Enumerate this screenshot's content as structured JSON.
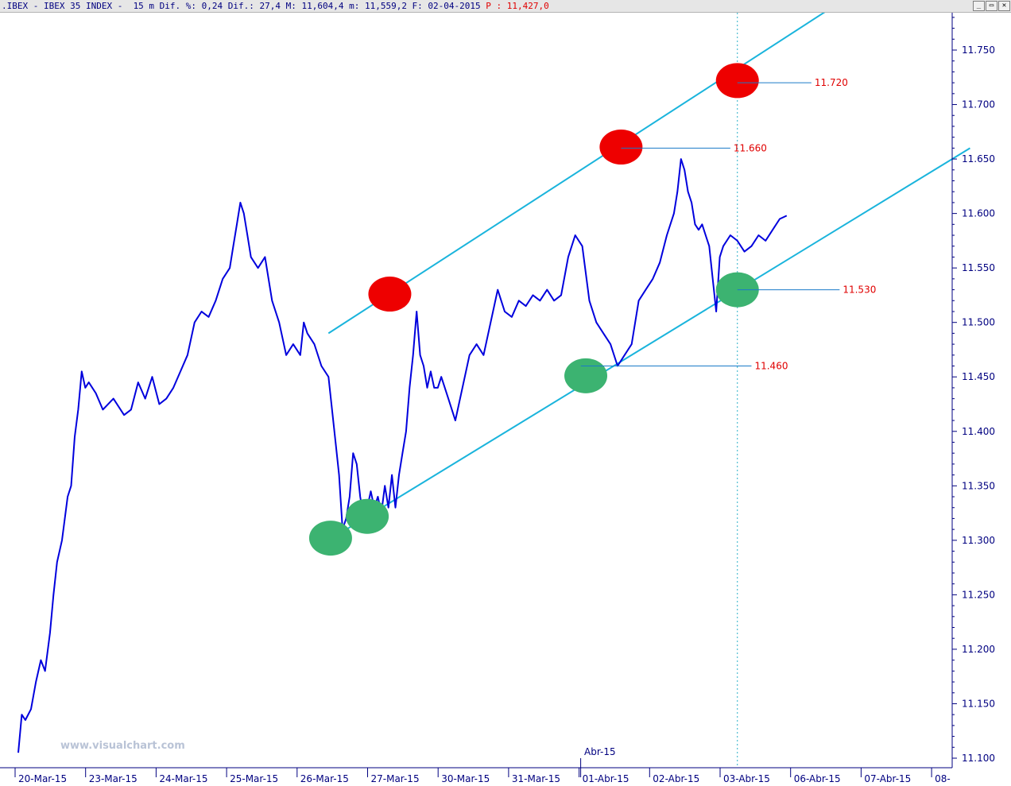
{
  "window": {
    "title": ".IBEX - IBEX 35 INDEX -  15 m Dif. %: 0,24 Dif.: 27,4 M: 11,604,4 m: 11,559,2 F: 02-04-2015",
    "title_extra": "P : 11,427,0",
    "controls": [
      "_",
      "▭",
      "✕"
    ]
  },
  "watermark": "www.visualchart.com",
  "month_marker": "Abr-15",
  "colors": {
    "price": "#0000dd",
    "channel": "#1ab4dc",
    "level_line": "#1a7ac8",
    "level_text": "#e00000",
    "red_marker": "#ee0000",
    "green_marker": "#3cb371",
    "axis": "#000080",
    "vline": "#2ab0c8"
  },
  "chart_data": {
    "type": "line",
    "title": "IBEX 35 INDEX 15 m",
    "ylim": [
      11090,
      11800
    ],
    "yticks": [
      11100,
      11150,
      11200,
      11250,
      11300,
      11350,
      11400,
      11450,
      11500,
      11550,
      11600,
      11650,
      11700,
      11750
    ],
    "ytick_labels": [
      "11.100",
      "11.150",
      "11.200",
      "11.250",
      "11.300",
      "11.350",
      "11.400",
      "11.450",
      "11.500",
      "11.550",
      "11.600",
      "11.650",
      "11.700",
      "11.750"
    ],
    "xtick_labels": [
      "20-Mar-15",
      "23-Mar-15",
      "24-Mar-15",
      "25-Mar-15",
      "26-Mar-15",
      "27-Mar-15",
      "30-Mar-15",
      "31-Mar-15",
      "01-Abr-15",
      "02-Abr-15",
      "03-Abr-15",
      "06-Abr-15",
      "07-Abr-15",
      "08-"
    ],
    "x_domain": [
      0,
      13
    ],
    "series": [
      {
        "values": [
          [
            0.0,
            11105
          ],
          [
            0.05,
            11140
          ],
          [
            0.1,
            11135
          ],
          [
            0.18,
            11145
          ],
          [
            0.25,
            11170
          ],
          [
            0.32,
            11190
          ],
          [
            0.38,
            11180
          ],
          [
            0.45,
            11215
          ],
          [
            0.5,
            11250
          ],
          [
            0.55,
            11280
          ],
          [
            0.62,
            11300
          ],
          [
            0.7,
            11340
          ],
          [
            0.75,
            11350
          ],
          [
            0.8,
            11395
          ],
          [
            0.85,
            11420
          ],
          [
            0.9,
            11455
          ],
          [
            0.95,
            11440
          ],
          [
            1.0,
            11445
          ],
          [
            1.1,
            11435
          ],
          [
            1.2,
            11420
          ],
          [
            1.35,
            11430
          ],
          [
            1.5,
            11415
          ],
          [
            1.6,
            11420
          ],
          [
            1.7,
            11445
          ],
          [
            1.8,
            11430
          ],
          [
            1.9,
            11450
          ],
          [
            2.0,
            11425
          ],
          [
            2.1,
            11430
          ],
          [
            2.2,
            11440
          ],
          [
            2.3,
            11455
          ],
          [
            2.4,
            11470
          ],
          [
            2.5,
            11500
          ],
          [
            2.6,
            11510
          ],
          [
            2.7,
            11505
          ],
          [
            2.8,
            11520
          ],
          [
            2.9,
            11540
          ],
          [
            3.0,
            11550
          ],
          [
            3.05,
            11570
          ],
          [
            3.1,
            11590
          ],
          [
            3.15,
            11610
          ],
          [
            3.2,
            11600
          ],
          [
            3.25,
            11580
          ],
          [
            3.3,
            11560
          ],
          [
            3.4,
            11550
          ],
          [
            3.5,
            11560
          ],
          [
            3.6,
            11520
          ],
          [
            3.7,
            11500
          ],
          [
            3.8,
            11470
          ],
          [
            3.9,
            11480
          ],
          [
            4.0,
            11470
          ],
          [
            4.05,
            11500
          ],
          [
            4.1,
            11490
          ],
          [
            4.2,
            11480
          ],
          [
            4.3,
            11460
          ],
          [
            4.4,
            11450
          ],
          [
            4.5,
            11390
          ],
          [
            4.55,
            11360
          ],
          [
            4.6,
            11310
          ],
          [
            4.65,
            11320
          ],
          [
            4.7,
            11340
          ],
          [
            4.75,
            11380
          ],
          [
            4.8,
            11370
          ],
          [
            4.85,
            11340
          ],
          [
            4.9,
            11320
          ],
          [
            4.95,
            11330
          ],
          [
            5.0,
            11345
          ],
          [
            5.05,
            11330
          ],
          [
            5.1,
            11340
          ],
          [
            5.15,
            11325
          ],
          [
            5.2,
            11350
          ],
          [
            5.25,
            11330
          ],
          [
            5.3,
            11360
          ],
          [
            5.35,
            11330
          ],
          [
            5.4,
            11360
          ],
          [
            5.45,
            11380
          ],
          [
            5.5,
            11400
          ],
          [
            5.55,
            11440
          ],
          [
            5.6,
            11470
          ],
          [
            5.65,
            11510
          ],
          [
            5.7,
            11470
          ],
          [
            5.75,
            11460
          ],
          [
            5.8,
            11440
          ],
          [
            5.85,
            11455
          ],
          [
            5.9,
            11440
          ],
          [
            5.95,
            11440
          ],
          [
            6.0,
            11450
          ],
          [
            6.1,
            11430
          ],
          [
            6.2,
            11410
          ],
          [
            6.3,
            11440
          ],
          [
            6.4,
            11470
          ],
          [
            6.5,
            11480
          ],
          [
            6.6,
            11470
          ],
          [
            6.7,
            11500
          ],
          [
            6.8,
            11530
          ],
          [
            6.9,
            11510
          ],
          [
            7.0,
            11505
          ],
          [
            7.1,
            11520
          ],
          [
            7.2,
            11515
          ],
          [
            7.3,
            11525
          ],
          [
            7.4,
            11520
          ],
          [
            7.5,
            11530
          ],
          [
            7.6,
            11520
          ],
          [
            7.7,
            11525
          ],
          [
            7.8,
            11560
          ],
          [
            7.9,
            11580
          ],
          [
            8.0,
            11570
          ],
          [
            8.1,
            11520
          ],
          [
            8.2,
            11500
          ],
          [
            8.3,
            11490
          ],
          [
            8.4,
            11480
          ],
          [
            8.5,
            11460
          ],
          [
            8.6,
            11470
          ],
          [
            8.7,
            11480
          ],
          [
            8.8,
            11520
          ],
          [
            8.9,
            11530
          ],
          [
            9.0,
            11540
          ],
          [
            9.1,
            11555
          ],
          [
            9.2,
            11580
          ],
          [
            9.3,
            11600
          ],
          [
            9.35,
            11620
          ],
          [
            9.4,
            11650
          ],
          [
            9.45,
            11640
          ],
          [
            9.5,
            11620
          ],
          [
            9.55,
            11610
          ],
          [
            9.6,
            11590
          ],
          [
            9.65,
            11585
          ],
          [
            9.7,
            11590
          ],
          [
            9.75,
            11580
          ],
          [
            9.8,
            11570
          ],
          [
            9.85,
            11540
          ],
          [
            9.9,
            11510
          ],
          [
            9.95,
            11560
          ],
          [
            10.0,
            11570
          ],
          [
            10.1,
            11580
          ],
          [
            10.2,
            11575
          ],
          [
            10.3,
            11565
          ],
          [
            10.4,
            11570
          ],
          [
            10.5,
            11580
          ],
          [
            10.6,
            11575
          ],
          [
            10.7,
            11585
          ],
          [
            10.8,
            11595
          ],
          [
            10.9,
            11598
          ]
        ]
      }
    ],
    "channel": {
      "upper": [
        [
          4.4,
          11490
        ],
        [
          11.8,
          11800
        ]
      ],
      "lower": [
        [
          4.4,
          11300
        ],
        [
          13.5,
          11660
        ]
      ]
    },
    "levels": [
      {
        "value": 11720,
        "label": "11.720",
        "x": 10.2,
        "x_end": 11.25
      },
      {
        "value": 11660,
        "label": "11.660",
        "x": 8.55,
        "x_end": 10.1
      },
      {
        "value": 11530,
        "label": "11.530",
        "x": 10.2,
        "x_end": 11.65
      },
      {
        "value": 11460,
        "label": "11.460",
        "x": 7.98,
        "x_end": 10.4
      }
    ],
    "markers": [
      {
        "color": "red",
        "x": 10.2,
        "y": 11722
      },
      {
        "color": "red",
        "x": 8.55,
        "y": 11661
      },
      {
        "color": "red",
        "x": 5.27,
        "y": 11526
      },
      {
        "color": "green",
        "x": 10.2,
        "y": 11530
      },
      {
        "color": "green",
        "x": 8.05,
        "y": 11451
      },
      {
        "color": "green",
        "x": 4.95,
        "y": 11322
      },
      {
        "color": "green",
        "x": 4.43,
        "y": 11302
      }
    ],
    "vline_x": 10.2,
    "grid": false
  }
}
